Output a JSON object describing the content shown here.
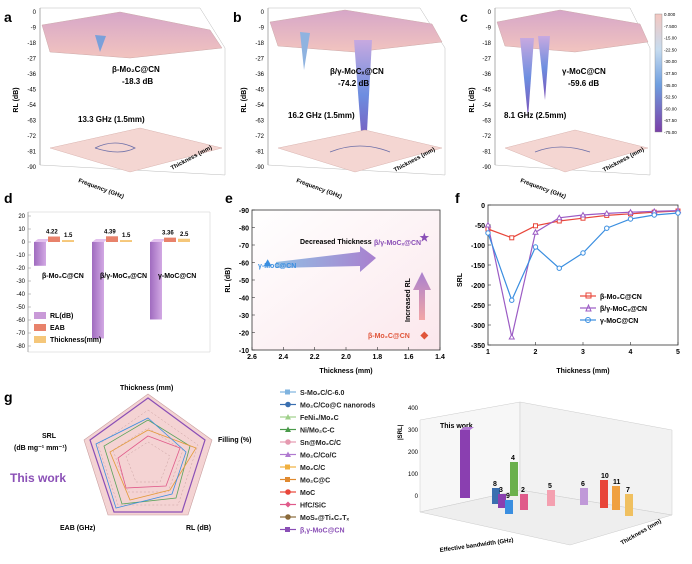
{
  "panels": {
    "a": {
      "label": "a",
      "annotation_name": "β-Mo₂C@CN",
      "annotation_value": "-18.3 dB",
      "peak_note": "13.3 GHz (1.5mm)",
      "axis_z": "RL (dB)",
      "axis_x": "Frequency (GHz)",
      "axis_y": "Thickness (mm)",
      "z_ticks": [
        "0",
        "-9",
        "-18",
        "-27",
        "-36",
        "-45",
        "-54",
        "-63",
        "-72",
        "-81",
        "-90"
      ]
    },
    "b": {
      "label": "b",
      "annotation_name": "β/γ-MoCₓ@CN",
      "annotation_value": "-74.2 dB",
      "peak_note": "16.2 GHz (1.5mm)",
      "axis_z": "RL (dB)",
      "axis_x": "Frequency (GHz)",
      "axis_y": "Thickness (mm)",
      "z_ticks": [
        "0",
        "-9",
        "-18",
        "-27",
        "-36",
        "-45",
        "-54",
        "-63",
        "-72",
        "-81",
        "-90"
      ]
    },
    "c": {
      "label": "c",
      "annotation_name": "γ-MoC@CN",
      "annotation_value": "-59.6 dB",
      "peak_note": "8.1 GHz (2.5mm)",
      "axis_z": "RL (dB)",
      "axis_x": "Frequency (GHz)",
      "axis_y": "Thickness (mm)",
      "z_ticks": [
        "0",
        "-9",
        "-18",
        "-27",
        "-36",
        "-45",
        "-54",
        "-63",
        "-72",
        "-81",
        "-90"
      ]
    },
    "colorbar_ticks": [
      "0.000",
      "-7.500",
      "-15.00",
      "-22.50",
      "-30.00",
      "-37.50",
      "-45.00",
      "-52.50",
      "-60.00",
      "-67.50",
      "-75.00"
    ],
    "d": {
      "label": "d",
      "y_ticks": [
        "20",
        "10",
        "0",
        "-10",
        "-20",
        "-30",
        "-40",
        "-50",
        "-60",
        "-70",
        "-80"
      ],
      "legend": [
        "RL(dB)",
        "EAB",
        "Thickness(mm)"
      ]
    },
    "e": {
      "label": "e",
      "xlabel": "Thickness (mm)",
      "ylabel": "RL (dB)",
      "x_ticks": [
        "2.6",
        "2.4",
        "2.2",
        "2.0",
        "1.8",
        "1.6",
        "1.4"
      ],
      "y_ticks": [
        "-90",
        "-80",
        "-70",
        "-60",
        "-50",
        "-40",
        "-30",
        "-20",
        "-10"
      ],
      "arrow1": "Decreased Thickness",
      "arrow2": "Increased RL",
      "labels": [
        "γ-MoC@CN",
        "β/γ-MoCₓ@CN",
        "β-Mo₂C@CN"
      ]
    },
    "f": {
      "label": "f",
      "xlabel": "Thickness (mm)",
      "ylabel": "SRL",
      "x_ticks": [
        "1",
        "2",
        "3",
        "4",
        "5"
      ],
      "y_ticks": [
        "0",
        "-50",
        "-100",
        "-150",
        "-200",
        "-250",
        "-300",
        "-350"
      ],
      "legend": [
        "β-Mo₂C@CN",
        "β/γ-MoCₓ@CN",
        "γ-MoC@CN"
      ]
    },
    "g": {
      "label": "g",
      "axes": [
        "Thickness (mm)",
        "Filling (%)",
        "RL (dB)",
        "EAB (GHz)",
        "SRL"
      ],
      "srl_unit": "(dB mg⁻¹ mm⁻¹)",
      "this_work": "This work",
      "legend": [
        "S-Mo₂C/C-6.0",
        "Mo₂C/Co@C nanorods",
        "FeNi₃/Mo₂C",
        "Ni/Mo₂C-C",
        "Sn@Mo₂C/C",
        "Mo₂C/Co/C",
        "Mo₂C/C",
        "Mo₂C@C",
        "MoC",
        "HfC/SiC",
        "MoS₂@Ti₃C₂Tₓ",
        "β,γ-MoC@CN"
      ],
      "bar3d_ylabel": "|SRL|",
      "bar3d_xlabel": "Effective bandwidth (GHz)",
      "bar3d_zlabel": "Thickness (mm)",
      "bar3d_this_work": "This work",
      "bar3d_yticks": [
        "400",
        "300",
        "200",
        "100",
        "0"
      ],
      "bar3d_indices": [
        "4",
        "8",
        "3",
        "2",
        "9",
        "5",
        "6",
        "10",
        "11",
        "7"
      ]
    }
  },
  "chart_data": [
    {
      "type": "scatter",
      "title": "",
      "xlabel": "Thickness (mm)",
      "ylabel": "RL (dB)",
      "xlim": [
        2.6,
        1.4
      ],
      "ylim": [
        -90,
        -10
      ],
      "series": [
        {
          "name": "γ-MoC@CN",
          "x": [
            2.5
          ],
          "y": [
            -59.6
          ],
          "color": "#3a8ee0"
        },
        {
          "name": "β/γ-MoCₓ@CN",
          "x": [
            1.5
          ],
          "y": [
            -74.2
          ],
          "color": "#8a4fb6"
        },
        {
          "name": "β-Mo₂C@CN",
          "x": [
            1.5
          ],
          "y": [
            -18.3
          ],
          "color": "#e0553a"
        }
      ]
    },
    {
      "type": "line",
      "title": "",
      "xlabel": "Thickness (mm)",
      "ylabel": "SRL",
      "xlim": [
        1,
        5
      ],
      "ylim": [
        -350,
        0
      ],
      "x": [
        1,
        1.5,
        2,
        2.5,
        3,
        3.5,
        4,
        4.5,
        5
      ],
      "series": [
        {
          "name": "β-Mo₂C@CN",
          "color": "#e8463a",
          "values": [
            -60,
            -82,
            -52,
            -40,
            -33,
            -26,
            -22,
            -18,
            -15
          ]
        },
        {
          "name": "β/γ-MoCₓ@CN",
          "color": "#9b5bc4",
          "values": [
            -50,
            -330,
            -68,
            -32,
            -25,
            -21,
            -18,
            -16,
            -14
          ]
        },
        {
          "name": "γ-MoC@CN",
          "color": "#3a8ee0",
          "values": [
            -70,
            -238,
            -105,
            -158,
            -120,
            -58,
            -35,
            -25,
            -20
          ]
        }
      ]
    },
    {
      "type": "bar",
      "title": "",
      "categories": [
        "β-Mo₂C@CN",
        "β/γ-MoCₓ@CN",
        "γ-MoC@CN"
      ],
      "series": [
        {
          "name": "RL(dB)",
          "color": "#c99ad8",
          "values": [
            -18.3,
            -74.2,
            -59.6
          ]
        },
        {
          "name": "EAB",
          "color": "#e8826b",
          "values": [
            4.22,
            4.39,
            3.36
          ]
        },
        {
          "name": "Thickness(mm)",
          "color": "#f5c77a",
          "values": [
            1.5,
            1.5,
            2.5
          ]
        }
      ],
      "ylim": [
        -80,
        20
      ]
    }
  ]
}
